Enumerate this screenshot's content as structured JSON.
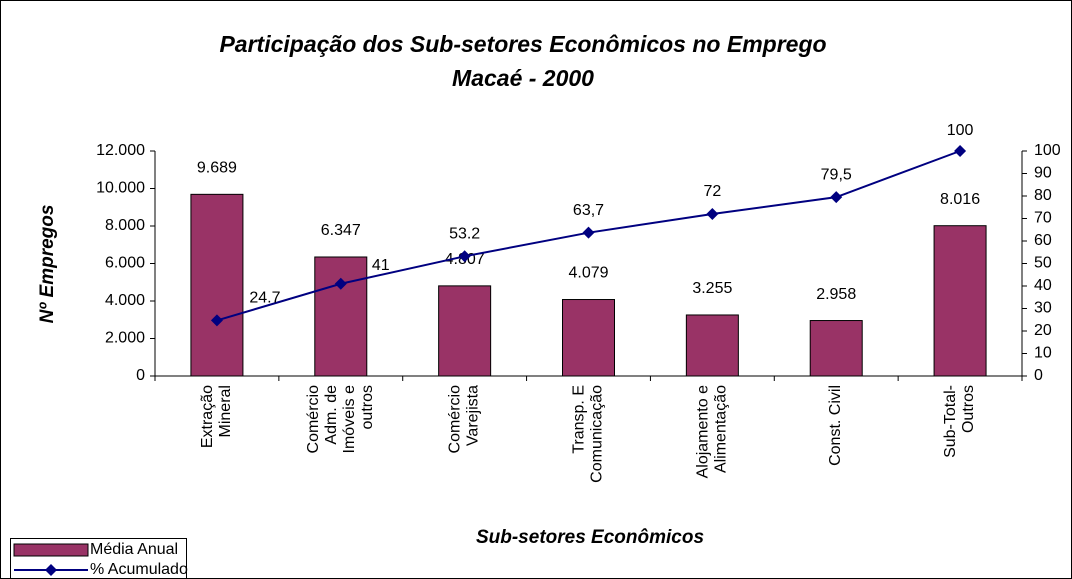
{
  "chart_data": {
    "type": "bar_line",
    "title": "Participação dos Sub-setores Econômicos no Emprego",
    "subtitle": "Macaé - 2000",
    "y_label": "Nº Empregos",
    "x_label": "Sub-setores Econômicos",
    "categories": [
      "Extração\nMineral",
      "Comércio\nAdm. de\nImóveis e\noutros",
      "Comércio\nVarejista",
      "Transp. E\nComunicação",
      "Alojamento e\nAlimentação",
      "Const. Civil",
      "Sub-Total-\nOutros"
    ],
    "ylim": [
      0,
      12000
    ],
    "yticks": [
      0,
      {
        "value": 2000,
        "label": "2.000"
      },
      {
        "value": 4000,
        "label": "4.000"
      },
      {
        "value": 6000,
        "label": "6.000"
      },
      {
        "value": 8000,
        "label": "8.000"
      },
      {
        "value": 10000,
        "label": "10.000"
      },
      {
        "value": 12000,
        "label": "12.000"
      }
    ],
    "y2lim": [
      0,
      100
    ],
    "y2ticks": [
      0,
      10,
      20,
      30,
      40,
      50,
      60,
      70,
      80,
      90,
      100
    ],
    "legend": "bottom-left",
    "series": [
      {
        "name": "Média Anual",
        "type": "bar",
        "color": "#993366",
        "values": [
          9689,
          6347,
          4807,
          4079,
          3255,
          2958,
          8016
        ],
        "value_labels": [
          "9.689",
          "6.347",
          "4.807",
          "4.079",
          "3.255",
          "2.958",
          "8.016"
        ]
      },
      {
        "name": "% Acumulado",
        "type": "line",
        "axis": "y2",
        "color": "#000080",
        "values": [
          24.7,
          41,
          53.2,
          63.7,
          72,
          79.5,
          100
        ],
        "value_labels": [
          "24.7",
          "41",
          "53.2",
          "63,7",
          "72",
          "79,5",
          "100"
        ]
      }
    ]
  }
}
